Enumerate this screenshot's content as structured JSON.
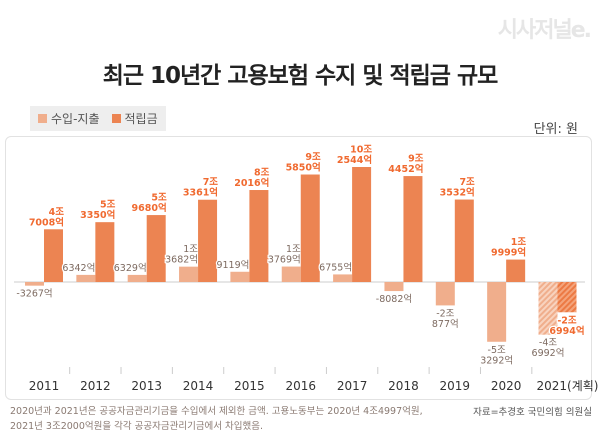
{
  "logo": "시사저널e.",
  "chart_data": {
    "type": "bar",
    "title": "최근 10년간 고용보험 수지 및 적립금 규모",
    "unit": "단위: 원",
    "categories": [
      "2011",
      "2012",
      "2013",
      "2014",
      "2015",
      "2016",
      "2017",
      "2018",
      "2019",
      "2020",
      "2021(계획)"
    ],
    "series": [
      {
        "name": "수입-지출",
        "color": "#f0ae8c",
        "label_color": "#7d6a60",
        "values": [
          -3267,
          6342,
          6329,
          13682,
          9119,
          13769,
          6755,
          -8082,
          -20877,
          -53292,
          -46992
        ],
        "labels": [
          [
            "-3267억"
          ],
          [
            "6342억"
          ],
          [
            "6329억"
          ],
          [
            "1조",
            "3682억"
          ],
          [
            "9119억"
          ],
          [
            "1조",
            "3769억"
          ],
          [
            "6755억"
          ],
          [
            "-8082억"
          ],
          [
            "-2조",
            "877억"
          ],
          [
            "-5조",
            "3292억"
          ],
          [
            "-4조",
            "6992억"
          ]
        ]
      },
      {
        "name": "적립금",
        "color": "#ec8452",
        "label_color": "#f06a30",
        "values": [
          47008,
          53350,
          59680,
          73361,
          82016,
          95850,
          102544,
          94452,
          73532,
          19999,
          -26994
        ],
        "labels": [
          [
            "4조",
            "7008억"
          ],
          [
            "5조",
            "3350억"
          ],
          [
            "5조",
            "9680억"
          ],
          [
            "7조",
            "3361억"
          ],
          [
            "8조",
            "2016억"
          ],
          [
            "9조",
            "5850억"
          ],
          [
            "10조",
            "2544억"
          ],
          [
            "9조",
            "4452억"
          ],
          [
            "7조",
            "3532억"
          ],
          [
            "1조",
            "9999억"
          ],
          [
            "-2조",
            "6994억"
          ]
        ]
      }
    ],
    "value_unit": "억 원",
    "hatched_categories": [
      "2021(계획)"
    ],
    "legend_position": "top-left",
    "grid": false
  },
  "footnote": [
    "2020년과 2021년은 공공자금관리기금을 수입에서 제외한 금액. 고용노동부는 2020년 4조4997억원,",
    "2021년 3조2000억원을 각각 공공자금관리기금에서 차입했음."
  ],
  "source": "자료=추경호 국민의힘 의원실"
}
